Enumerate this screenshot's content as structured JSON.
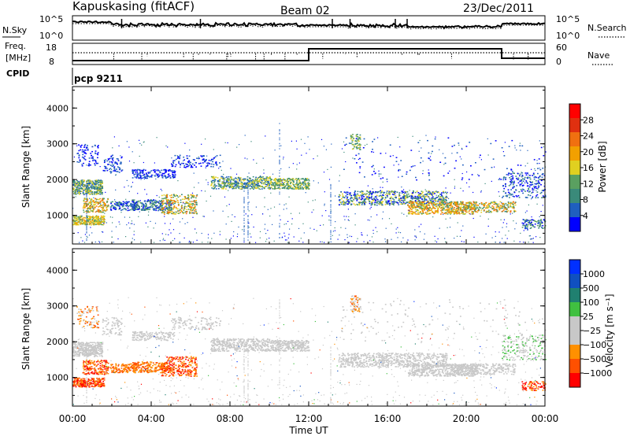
{
  "header": {
    "station": "Kapuskasing (fitACF)",
    "beam": "Beam 02",
    "date": "23/Dec/2011"
  },
  "noise_panel": {
    "left_label": "N.Sky",
    "right_label": "N.Search",
    "tick_top": "10^5",
    "tick_bottom": "10^0"
  },
  "freq_panel": {
    "left_label_1": "Freq.",
    "left_label_2": "[MHz]",
    "right_label": "Nave",
    "freq_ticks": [
      "18",
      "8"
    ],
    "nave_ticks": [
      "60",
      "0"
    ]
  },
  "cpid": {
    "label": "CPID",
    "program": "pcp 9211"
  },
  "colors": {
    "power_scale": [
      "#0000ff",
      "#1f5fbf",
      "#3a8a7a",
      "#5aa060",
      "#e0d020",
      "#f2a000",
      "#f07010",
      "#e03010",
      "#ff0000"
    ],
    "velocity_scale": [
      "#ff0000",
      "#ff5000",
      "#ff9000",
      "#c8c8c8",
      "#c8c8c8",
      "#40c040",
      "#208070",
      "#1050c0",
      "#0030ff"
    ]
  },
  "chart_data": [
    {
      "type": "heatmap",
      "panel": "power",
      "ylabel": "Slant Range [km]",
      "ylim": [
        200,
        4600
      ],
      "yticks": [
        "1000",
        "2000",
        "3000",
        "4000"
      ],
      "colorbar_label": "Power [dB]",
      "colorbar_ticks": [
        "4",
        "8",
        "12",
        "16",
        "20",
        "24",
        "28"
      ],
      "colorbar_range": [
        0,
        32
      ]
    },
    {
      "type": "heatmap",
      "panel": "velocity",
      "ylabel": "Slant Range [km]",
      "ylim": [
        200,
        4600
      ],
      "yticks": [
        "1000",
        "2000",
        "3000",
        "4000"
      ],
      "colorbar_label": "Velocity [m s⁻¹]",
      "colorbar_ticks": [
        "1000",
        "500",
        "100",
        "25",
        "−25",
        "−100",
        "−500",
        "−1000"
      ]
    }
  ],
  "x_axis": {
    "label": "Time UT",
    "ticks": [
      "00:00",
      "04:00",
      "08:00",
      "12:00",
      "16:00",
      "20:00",
      "00:00"
    ],
    "range_hours": [
      0,
      24
    ]
  }
}
